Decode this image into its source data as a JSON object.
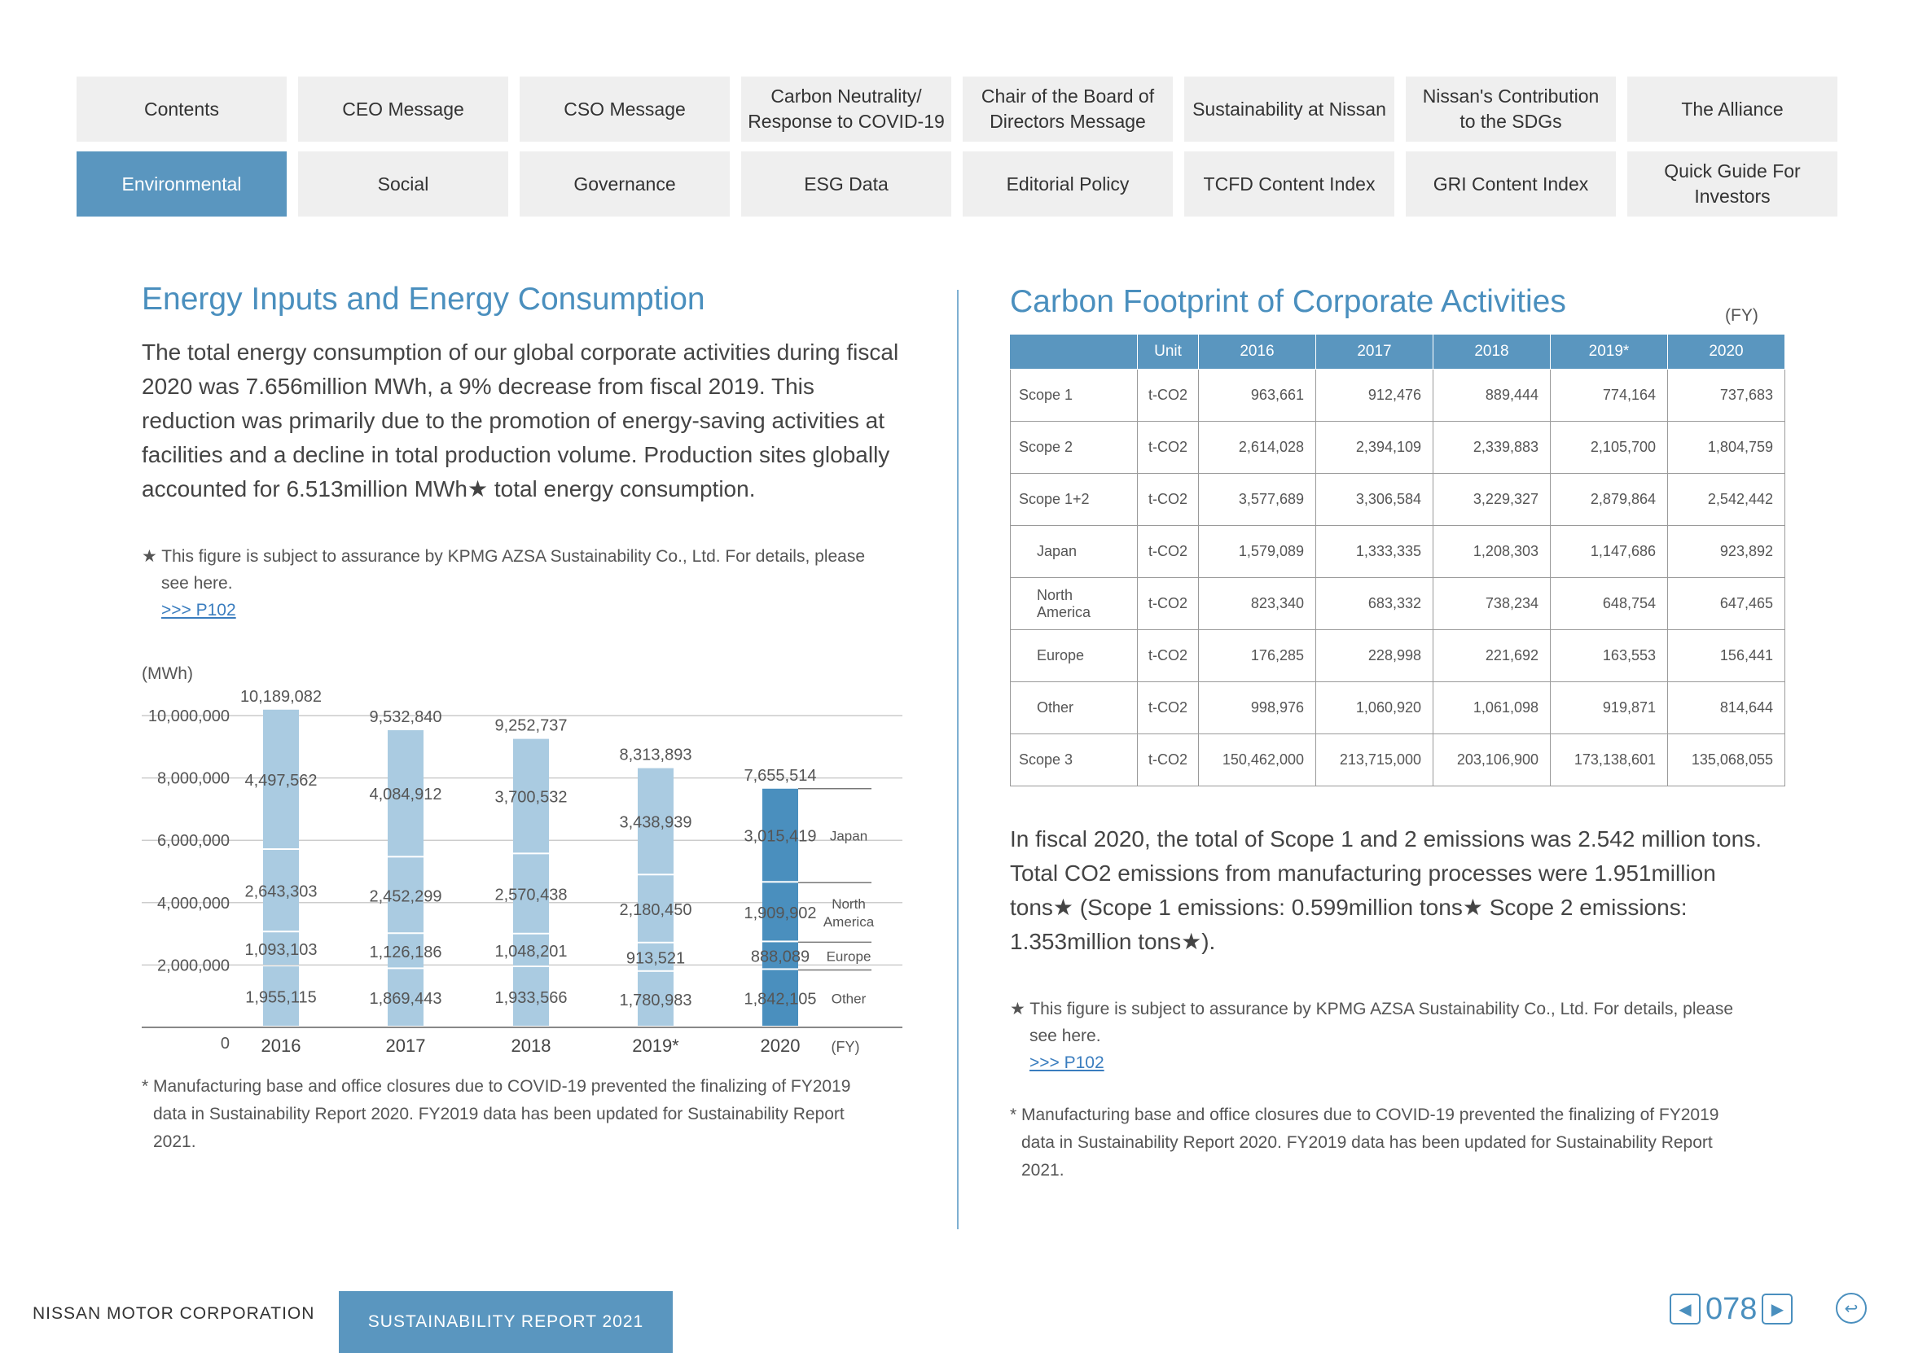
{
  "nav": {
    "row1": [
      "Contents",
      "CEO Message",
      "CSO Message",
      "Carbon Neutrality/\nResponse to COVID-19",
      "Chair of the Board of\nDirectors Message",
      "Sustainability at Nissan",
      "Nissan's Contribution\nto the SDGs",
      "The Alliance"
    ],
    "row2": [
      "Environmental",
      "Social",
      "Governance",
      "ESG Data",
      "Editorial Policy",
      "TCFD Content Index",
      "GRI Content Index",
      "Quick Guide For\nInvestors"
    ],
    "active": "Environmental"
  },
  "left": {
    "title": "Energy Inputs and Energy Consumption",
    "body": "The total energy consumption of our global corporate activities during fiscal 2020 was 7.656million MWh, a 9% decrease from fiscal 2019. This reduction was primarily due to the promotion of energy-saving activities at facilities and a decline in total production volume. Production sites globally accounted for 6.513million MWh★ total energy consumption.",
    "note_line1": "★ This figure is subject to assurance by KPMG AZSA Sustainability Co., Ltd. For details, please",
    "note_line2": "see here.",
    "note_link": ">>> P102",
    "foot_line1": "* Manufacturing base and office closures due to COVID-19 prevented the finalizing of FY2019",
    "foot_line2": "data in Sustainability Report 2020. FY2019 data has been updated for Sustainability Report",
    "foot_line3": "2021."
  },
  "chart_data": {
    "type": "bar",
    "stacked": true,
    "ylabel": "(MWh)",
    "xlabel": "(FY)",
    "ylim": [
      0,
      10000000
    ],
    "y_ticks": [
      "0",
      "2,000,000",
      "4,000,000",
      "6,000,000",
      "8,000,000",
      "10,000,000"
    ],
    "categories": [
      "2016",
      "2017",
      "2018",
      "2019*",
      "2020"
    ],
    "totals": [
      10189082,
      9532840,
      9252737,
      8313893,
      7655514
    ],
    "totals_labels": [
      "10,189,082",
      "9,532,840",
      "9,252,737",
      "8,313,893",
      "7,655,514"
    ],
    "series": [
      {
        "name": "Other",
        "values": [
          1955115,
          1869443,
          1933566,
          1780983,
          1842105
        ],
        "labels": [
          "1,955,115",
          "1,869,443",
          "1,933,566",
          "1,780,983",
          "1,842,105"
        ]
      },
      {
        "name": "Europe",
        "values": [
          1093103,
          1126186,
          1048201,
          913521,
          888089
        ],
        "labels": [
          "1,093,103",
          "1,126,186",
          "1,048,201",
          "913,521",
          "888,089"
        ]
      },
      {
        "name": "North\nAmerica",
        "values": [
          2643303,
          2452299,
          2570438,
          2180450,
          1909902
        ],
        "labels": [
          "2,643,303",
          "2,452,299",
          "2,570,438",
          "2,180,450",
          "1,909,902"
        ]
      },
      {
        "name": "Japan",
        "values": [
          4497562,
          4084912,
          3700532,
          3438939,
          3015419
        ],
        "labels": [
          "4,497,562",
          "4,084,912",
          "3,700,532",
          "3,438,939",
          "3,015,419"
        ]
      }
    ],
    "colors": {
      "past": "#aacbe1",
      "current": "#4a8fbe",
      "grid": "#cccccc",
      "text": "#555555"
    }
  },
  "right": {
    "title": "Carbon Footprint of Corporate Activities",
    "fy": "(FY)",
    "table": {
      "headers": [
        "",
        "Unit",
        "2016",
        "2017",
        "2018",
        "2019*",
        "2020"
      ],
      "rows": [
        {
          "label": "Scope 1",
          "unit": "t-CO2",
          "values": [
            "963,661",
            "912,476",
            "889,444",
            "774,164",
            "737,683"
          ],
          "sub": false
        },
        {
          "label": "Scope 2",
          "unit": "t-CO2",
          "values": [
            "2,614,028",
            "2,394,109",
            "2,339,883",
            "2,105,700",
            "1,804,759"
          ],
          "sub": false
        },
        {
          "label": "Scope 1+2",
          "unit": "t-CO2",
          "values": [
            "3,577,689",
            "3,306,584",
            "3,229,327",
            "2,879,864",
            "2,542,442"
          ],
          "sub": false
        },
        {
          "label": "Japan",
          "unit": "t-CO2",
          "values": [
            "1,579,089",
            "1,333,335",
            "1,208,303",
            "1,147,686",
            "923,892"
          ],
          "sub": true
        },
        {
          "label": "North\nAmerica",
          "unit": "t-CO2",
          "values": [
            "823,340",
            "683,332",
            "738,234",
            "648,754",
            "647,465"
          ],
          "sub": true
        },
        {
          "label": "Europe",
          "unit": "t-CO2",
          "values": [
            "176,285",
            "228,998",
            "221,692",
            "163,553",
            "156,441"
          ],
          "sub": true
        },
        {
          "label": "Other",
          "unit": "t-CO2",
          "values": [
            "998,976",
            "1,060,920",
            "1,061,098",
            "919,871",
            "814,644"
          ],
          "sub": true
        },
        {
          "label": "Scope 3",
          "unit": "t-CO2",
          "values": [
            "150,462,000",
            "213,715,000",
            "203,106,900",
            "173,138,601",
            "135,068,055"
          ],
          "sub": false
        }
      ]
    },
    "body": "In fiscal 2020, the total of Scope 1 and 2 emissions was 2.542 million tons. Total CO2 emissions from manufacturing processes were 1.951million tons★ (Scope 1 emissions: 0.599million tons★ Scope 2 emissions: 1.353million tons★).",
    "note_line1": "★ This figure is subject to assurance by KPMG AZSA Sustainability Co., Ltd. For details, please",
    "note_line2": "see here.",
    "note_link": ">>> P102",
    "foot_line1": "* Manufacturing base and office closures due to COVID-19 prevented the finalizing of FY2019",
    "foot_line2": "data in Sustainability Report 2020. FY2019 data has been updated for Sustainability Report",
    "foot_line3": "2021."
  },
  "footer": {
    "company": "NISSAN MOTOR CORPORATION",
    "report": "SUSTAINABILITY REPORT 2021",
    "page": "078"
  }
}
